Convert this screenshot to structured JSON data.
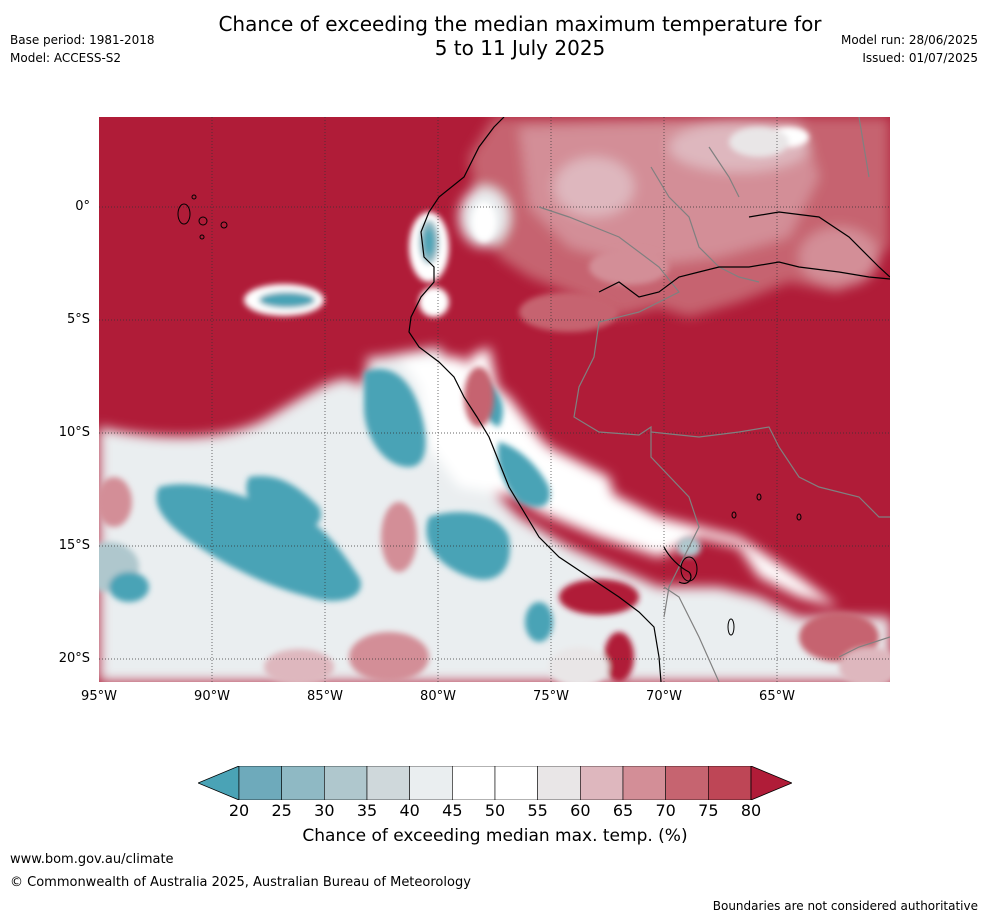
{
  "header": {
    "title_line1": "Chance of exceeding the median maximum temperature for",
    "title_line2": "5 to 11 July 2025",
    "base_period": "Base period: 1981-2018",
    "model": "Model: ACCESS-S2",
    "model_run": "Model run: 28/06/2025",
    "issued": "Issued: 01/07/2025"
  },
  "map": {
    "lat_labels": [
      "0°",
      "5°S",
      "10°S",
      "15°S",
      "20°S"
    ],
    "lon_labels": [
      "95°W",
      "90°W",
      "85°W",
      "80°W",
      "75°W",
      "70°W",
      "65°W"
    ],
    "colors": {
      "ocean_high": "#b01c38",
      "land_high": "#b01c38",
      "teal": "#4aa3b6",
      "white": "#ffffff",
      "coast": "#000000",
      "border": "#808080"
    }
  },
  "colorbar": {
    "ticks": [
      "20",
      "25",
      "30",
      "35",
      "40",
      "45",
      "50",
      "55",
      "60",
      "65",
      "70",
      "75",
      "80"
    ],
    "colors": [
      "#4aa3b6",
      "#6eaabb",
      "#8fb9c4",
      "#afc7cd",
      "#cfd8db",
      "#eaeef0",
      "#ffffff",
      "#ffffff",
      "#e9e6e7",
      "#deb7be",
      "#d38e97",
      "#c66470",
      "#be4656",
      "#b01c38"
    ],
    "label": "Chance of exceeding median max. temp. (%)"
  },
  "footer": {
    "url": "www.bom.gov.au/climate",
    "copyright": "© Commonwealth of Australia 2025, Australian Bureau of Meteorology",
    "disclaimer": "Boundaries are not considered authoritative"
  }
}
